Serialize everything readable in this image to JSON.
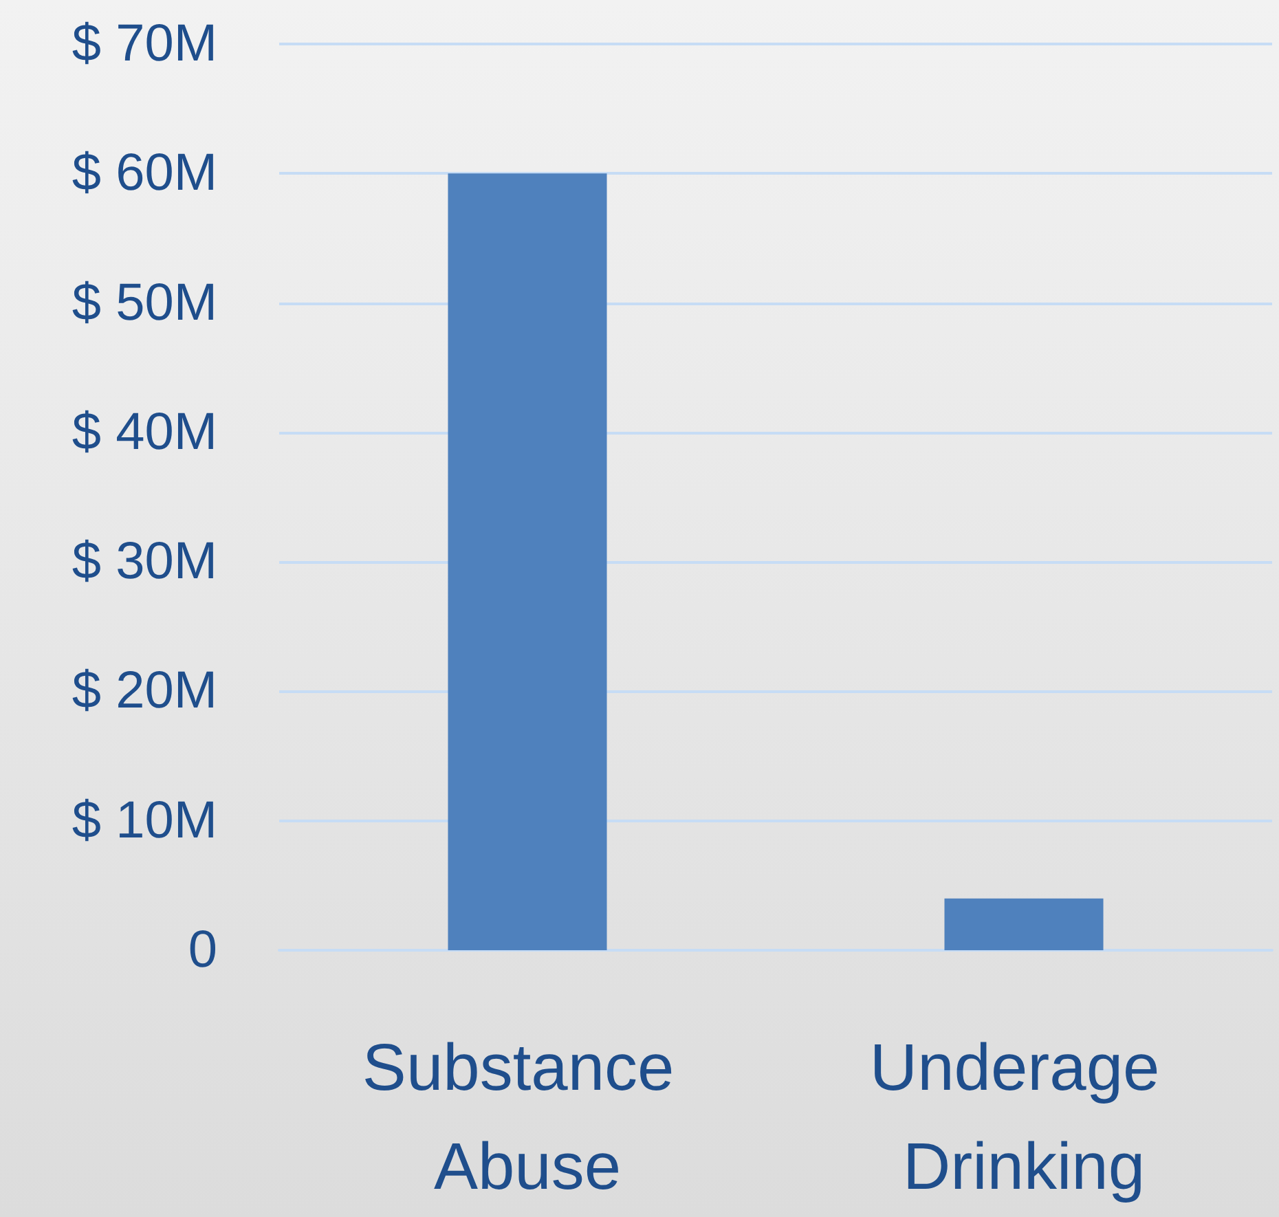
{
  "chart_data": {
    "type": "bar",
    "categories": [
      "Substance Abuse",
      "Underage Drinking"
    ],
    "values": [
      60,
      4
    ],
    "color": "#4f81bd",
    "ylim": [
      0,
      70
    ],
    "yticks": [
      {
        "value": 0,
        "label": "0"
      },
      {
        "value": 10,
        "label": "$ 10M"
      },
      {
        "value": 20,
        "label": "$ 20M"
      },
      {
        "value": 30,
        "label": "$ 30M"
      },
      {
        "value": 40,
        "label": "$ 40M"
      },
      {
        "value": 50,
        "label": "$ 50M"
      },
      {
        "value": 60,
        "label": "$ 60M"
      },
      {
        "value": 70,
        "label": "$ 70M"
      }
    ],
    "grid": true
  }
}
